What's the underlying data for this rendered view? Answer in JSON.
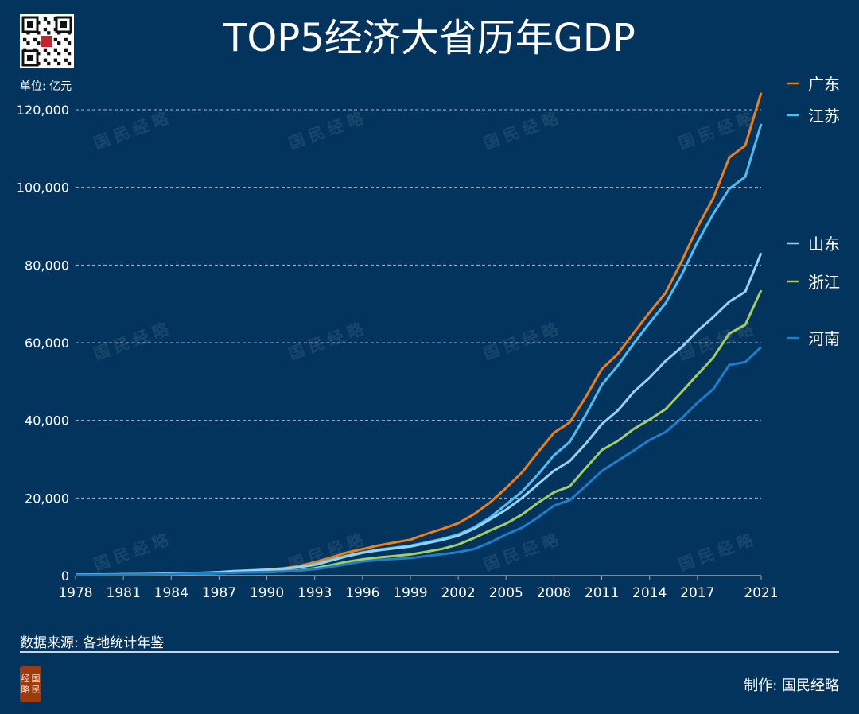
{
  "header": {
    "title": "TOP5经济大省历年GDP",
    "unit": "单位: 亿元"
  },
  "footer": {
    "source": "数据来源: 各地统计年鉴",
    "credit": "制作: 国民经略",
    "seal_text": "国民经略"
  },
  "watermark": "国民经略",
  "colors": {
    "background": "#03345d",
    "grid": "#c8d2dc",
    "seal": "#a0390c"
  },
  "chart_data": {
    "type": "line",
    "title": "TOP5经济大省历年GDP",
    "ylabel": "单位: 亿元",
    "xlabel": "",
    "xlim": [
      1978,
      2021
    ],
    "ylim": [
      0,
      120000
    ],
    "xticks": [
      1978,
      1981,
      1984,
      1987,
      1990,
      1993,
      1996,
      1999,
      2002,
      2005,
      2008,
      2011,
      2014,
      2017,
      2021
    ],
    "yticks": [
      0,
      20000,
      40000,
      60000,
      80000,
      100000,
      120000
    ],
    "ytick_labels": [
      "0",
      "20,000",
      "40,000",
      "60,000",
      "80,000",
      "100,000",
      "120,000"
    ],
    "grid": "horizontal-dashed",
    "legend_placement": "right",
    "x": [
      1978,
      1979,
      1980,
      1981,
      1982,
      1983,
      1984,
      1985,
      1986,
      1987,
      1988,
      1989,
      1990,
      1991,
      1992,
      1993,
      1994,
      1995,
      1996,
      1997,
      1998,
      1999,
      2000,
      2001,
      2002,
      2003,
      2004,
      2005,
      2006,
      2007,
      2008,
      2009,
      2010,
      2011,
      2012,
      2013,
      2014,
      2015,
      2016,
      2017,
      2018,
      2019,
      2020,
      2021
    ],
    "series": [
      {
        "name": "广东",
        "color": "#f07f13",
        "legend_y": 105,
        "values": [
          186,
          210,
          250,
          291,
          340,
          368,
          458,
          577,
          668,
          847,
          1155,
          1381,
          1559,
          1893,
          2448,
          3469,
          4619,
          5933,
          6834,
          7775,
          8531,
          9250,
          10741,
          12039,
          13502,
          15845,
          18865,
          22557,
          26588,
          31777,
          36797,
          39483,
          46036,
          53210,
          57068,
          62475,
          67810,
          72813,
          80855,
          89705,
          97278,
          107671,
          110761,
          124370
        ]
      },
      {
        "name": "江苏",
        "color": "#4fbdf0",
        "legend_y": 145,
        "values": [
          249,
          298,
          320,
          350,
          390,
          438,
          518,
          652,
          744,
          922,
          1209,
          1322,
          1417,
          1601,
          2136,
          2998,
          4057,
          5155,
          6004,
          6680,
          7200,
          7698,
          8554,
          9457,
          10607,
          12443,
          15004,
          18306,
          21645,
          26018,
          30982,
          34457,
          41425,
          49110,
          54058,
          59753,
          65088,
          70116,
          77388,
          85870,
          93208,
          99632,
          102719,
          116364
        ]
      },
      {
        "name": "山东",
        "color": "#93d3f3",
        "legend_y": 306,
        "values": [
          225,
          250,
          292,
          346,
          395,
          459,
          582,
          681,
          742,
          892,
          1117,
          1294,
          1511,
          1810,
          2196,
          2770,
          3844,
          4953,
          5883,
          6537,
          7021,
          7493,
          8337,
          9195,
          10275,
          12078,
          14500,
          17000,
          20000,
          23500,
          27000,
          29500,
          34000,
          39000,
          42500,
          47300,
          51000,
          55300,
          58800,
          63000,
          66600,
          70540,
          73129,
          83096
        ]
      },
      {
        "name": "浙江",
        "color": "#a2cd62",
        "legend_y": 354,
        "values": [
          124,
          157,
          180,
          204,
          234,
          257,
          323,
          429,
          502,
          606,
          770,
          850,
          905,
          1089,
          1376,
          1926,
          2689,
          3558,
          4189,
          4686,
          5052,
          5444,
          6141,
          6898,
          8004,
          9705,
          11649,
          13418,
          15718,
          18754,
          21463,
          22990,
          27722,
          32319,
          34665,
          37757,
          40173,
          42886,
          47251,
          51768,
          56197,
          62352,
          64613,
          73516
        ]
      },
      {
        "name": "河南",
        "color": "#1b7fc9",
        "legend_y": 425,
        "values": [
          163,
          190,
          229,
          250,
          263,
          328,
          371,
          451,
          502,
          610,
          750,
          850,
          935,
          1046,
          1280,
          1660,
          2217,
          2988,
          3635,
          4041,
          4308,
          4518,
          5053,
          5533,
          6035,
          6868,
          8554,
          10587,
          12363,
          15012,
          18019,
          19480,
          23092,
          26931,
          29599,
          32191,
          34938,
          37002,
          40472,
          44553,
          48056,
          54259,
          54997,
          58887
        ]
      }
    ]
  }
}
